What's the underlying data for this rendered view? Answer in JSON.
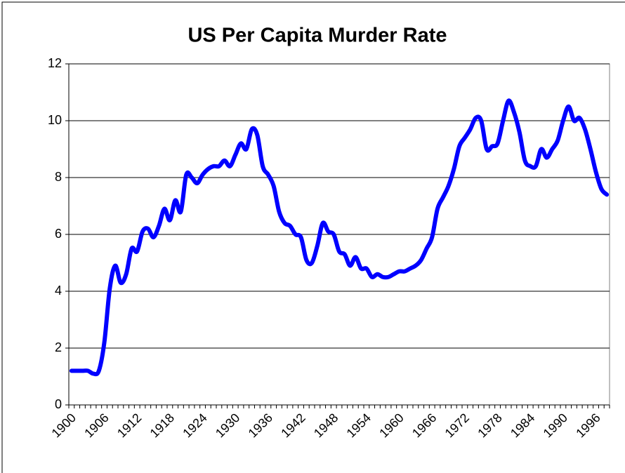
{
  "chart_data": {
    "type": "line",
    "title": "US Per Capita Murder Rate",
    "categories": [
      "1900",
      null,
      null,
      null,
      null,
      null,
      "1906",
      null,
      null,
      null,
      null,
      null,
      "1912",
      null,
      null,
      null,
      null,
      null,
      "1918",
      null,
      null,
      null,
      null,
      null,
      "1924",
      null,
      null,
      null,
      null,
      null,
      "1930",
      null,
      null,
      null,
      null,
      null,
      "1936",
      null,
      null,
      null,
      null,
      null,
      "1942",
      null,
      null,
      null,
      null,
      null,
      "1948",
      null,
      null,
      null,
      null,
      null,
      "1954",
      null,
      null,
      null,
      null,
      null,
      "1960",
      null,
      null,
      null,
      null,
      null,
      "1966",
      null,
      null,
      null,
      null,
      null,
      "1972",
      null,
      null,
      null,
      null,
      null,
      "1978",
      null,
      null,
      null,
      null,
      null,
      "1984",
      null,
      null,
      null,
      null,
      null,
      "1990",
      null,
      null,
      null,
      null,
      null,
      "1996",
      null,
      null
    ],
    "series": [
      {
        "color": "#0000ff",
        "values": [
          1.2,
          1.2,
          1.2,
          1.2,
          1.1,
          1.2,
          2.2,
          4.1,
          4.9,
          4.3,
          4.6,
          5.5,
          5.4,
          6.1,
          6.2,
          5.9,
          6.3,
          6.9,
          6.5,
          7.2,
          6.8,
          8.1,
          8.0,
          7.8,
          8.1,
          8.3,
          8.4,
          8.4,
          8.6,
          8.4,
          8.8,
          9.2,
          9.0,
          9.7,
          9.5,
          8.4,
          8.1,
          7.7,
          6.8,
          6.4,
          6.3,
          6.0,
          5.9,
          5.1,
          5.0,
          5.6,
          6.4,
          6.1,
          6.0,
          5.4,
          5.3,
          4.9,
          5.2,
          4.8,
          4.8,
          4.5,
          4.6,
          4.5,
          4.5,
          4.6,
          4.7,
          4.7,
          4.8,
          4.9,
          5.1,
          5.5,
          5.9,
          6.9,
          7.3,
          7.7,
          8.3,
          9.1,
          9.4,
          9.7,
          10.1,
          10.0,
          9.0,
          9.1,
          9.2,
          10.0,
          10.7,
          10.3,
          9.6,
          8.6,
          8.4,
          8.4,
          9.0,
          8.7,
          9.0,
          9.3,
          10.0,
          10.5,
          10.0,
          10.1,
          9.7,
          9.0,
          8.2,
          7.6,
          7.4
        ]
      }
    ],
    "ylim": [
      0,
      12
    ],
    "yticks": [
      0,
      2,
      4,
      6,
      8,
      10,
      12
    ],
    "grid": true
  }
}
